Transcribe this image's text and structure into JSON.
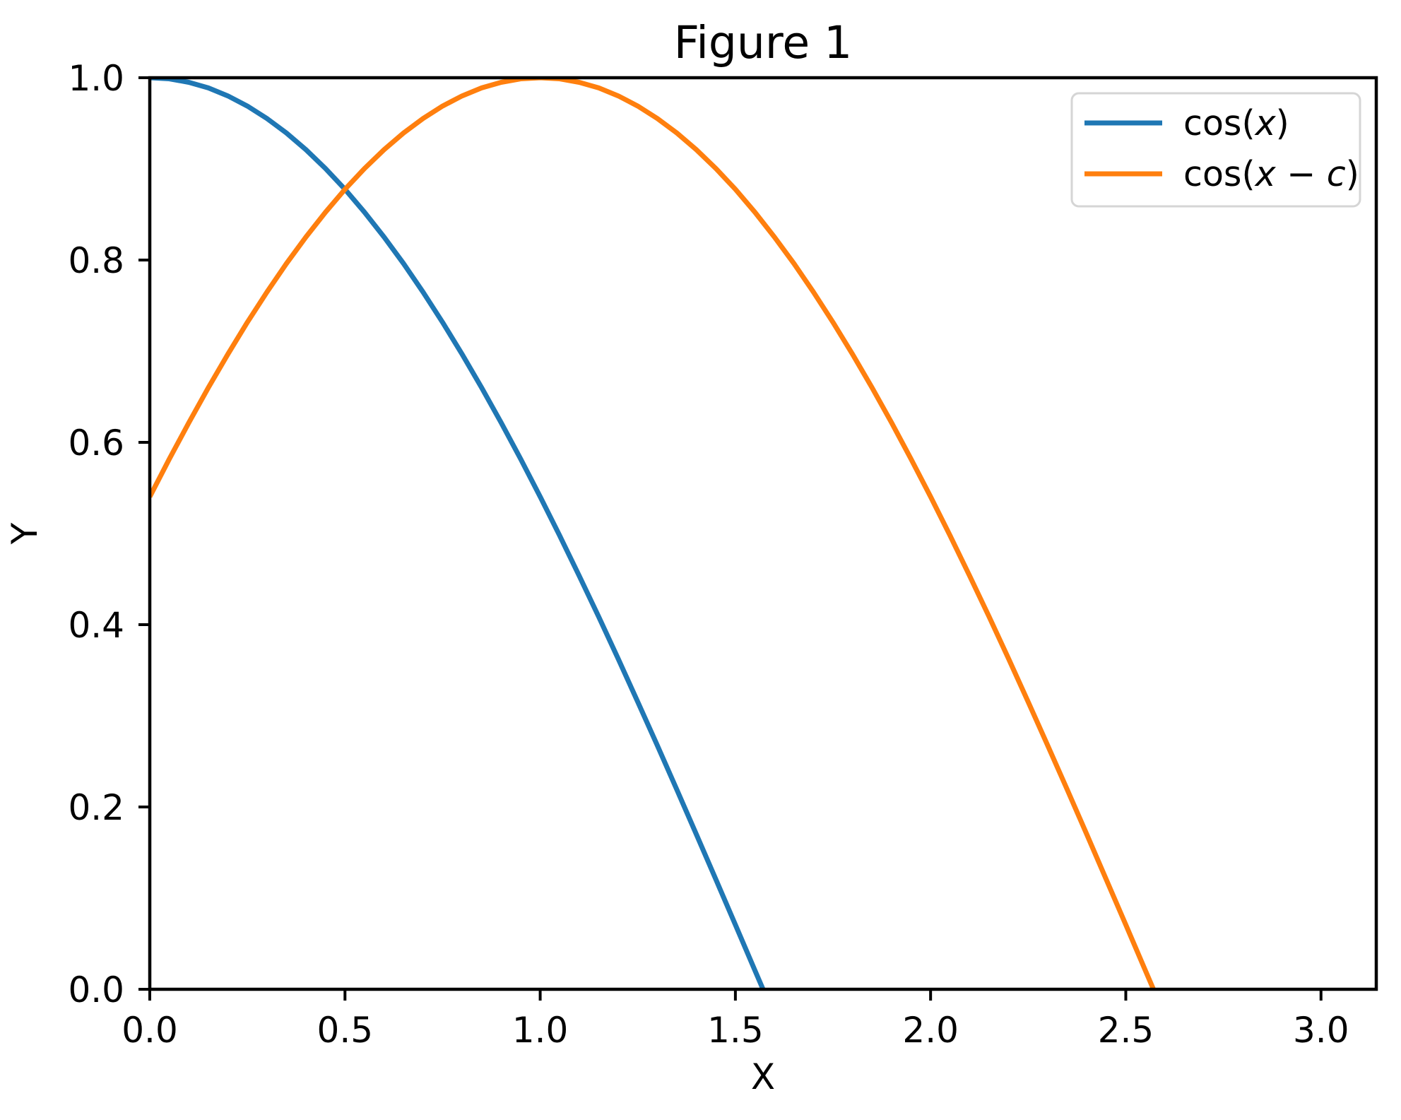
{
  "figure": {
    "background": "#ffffff",
    "axes_edge_color": "#000000",
    "text_color": "#000000",
    "legend_border_color": "#d5d5d5",
    "legend_background": "#ffffff"
  },
  "chart_data": {
    "type": "line",
    "title": "Figure 1",
    "xlabel": "X",
    "ylabel": "Y",
    "xlim": [
      0,
      3.14159
    ],
    "ylim": [
      0,
      1
    ],
    "grid": false,
    "x_ticks": [
      0.0,
      0.5,
      1.0,
      1.5,
      2.0,
      2.5,
      3.0
    ],
    "x_tick_labels": [
      "0.0",
      "0.5",
      "1.0",
      "1.5",
      "2.0",
      "2.5",
      "3.0"
    ],
    "y_ticks": [
      0.0,
      0.2,
      0.4,
      0.6,
      0.8,
      1.0
    ],
    "y_tick_labels": [
      "0.0",
      "0.2",
      "0.4",
      "0.6",
      "0.8",
      "1.0"
    ],
    "legend": {
      "position": "upper right",
      "entries": [
        "cos(x)",
        "cos(x − c)"
      ]
    },
    "series": [
      {
        "id": "cos-x",
        "name": "cos(x)",
        "color": "#1f77b4",
        "label_segments": [
          {
            "t": "cos(",
            "italic": false
          },
          {
            "t": "x",
            "italic": true
          },
          {
            "t": ")",
            "italic": false
          }
        ],
        "points": [
          [
            0.0,
            1.0
          ],
          [
            0.05,
            0.9988
          ],
          [
            0.1,
            0.995
          ],
          [
            0.15,
            0.9888
          ],
          [
            0.2,
            0.9801
          ],
          [
            0.25,
            0.9689
          ],
          [
            0.3,
            0.9553
          ],
          [
            0.35,
            0.9394
          ],
          [
            0.4,
            0.9211
          ],
          [
            0.45,
            0.9004
          ],
          [
            0.5,
            0.8776
          ],
          [
            0.55,
            0.8525
          ],
          [
            0.6,
            0.8253
          ],
          [
            0.65,
            0.7961
          ],
          [
            0.7,
            0.7648
          ],
          [
            0.75,
            0.7317
          ],
          [
            0.8,
            0.6967
          ],
          [
            0.85,
            0.66
          ],
          [
            0.9,
            0.6216
          ],
          [
            0.95,
            0.5817
          ],
          [
            1.0,
            0.5403
          ],
          [
            1.05,
            0.4976
          ],
          [
            1.1,
            0.4536
          ],
          [
            1.15,
            0.4085
          ],
          [
            1.2,
            0.3624
          ],
          [
            1.25,
            0.3153
          ],
          [
            1.3,
            0.2675
          ],
          [
            1.35,
            0.219
          ],
          [
            1.4,
            0.17
          ],
          [
            1.45,
            0.1205
          ],
          [
            1.5,
            0.0707
          ],
          [
            1.55,
            0.0208
          ],
          [
            1.5708,
            0.0
          ]
        ]
      },
      {
        "id": "cos-x-minus-c",
        "name": "cos(x − c)",
        "color": "#ff7f0e",
        "label_segments": [
          {
            "t": "cos(",
            "italic": false
          },
          {
            "t": "x",
            "italic": true
          },
          {
            "t": " − ",
            "italic": false
          },
          {
            "t": "c",
            "italic": true
          },
          {
            "t": ")",
            "italic": false
          }
        ],
        "points": [
          [
            0.0,
            0.5403
          ],
          [
            0.05,
            0.5817
          ],
          [
            0.1,
            0.6216
          ],
          [
            0.15,
            0.66
          ],
          [
            0.2,
            0.6967
          ],
          [
            0.25,
            0.7317
          ],
          [
            0.3,
            0.7648
          ],
          [
            0.35,
            0.7961
          ],
          [
            0.4,
            0.8253
          ],
          [
            0.45,
            0.8525
          ],
          [
            0.5,
            0.8776
          ],
          [
            0.55,
            0.9004
          ],
          [
            0.6,
            0.9211
          ],
          [
            0.65,
            0.9394
          ],
          [
            0.7,
            0.9553
          ],
          [
            0.75,
            0.9689
          ],
          [
            0.8,
            0.9801
          ],
          [
            0.85,
            0.9888
          ],
          [
            0.9,
            0.995
          ],
          [
            0.95,
            0.9988
          ],
          [
            1.0,
            1.0
          ],
          [
            1.05,
            0.9988
          ],
          [
            1.1,
            0.995
          ],
          [
            1.15,
            0.9888
          ],
          [
            1.2,
            0.9801
          ],
          [
            1.25,
            0.9689
          ],
          [
            1.3,
            0.9553
          ],
          [
            1.35,
            0.9394
          ],
          [
            1.4,
            0.9211
          ],
          [
            1.45,
            0.9004
          ],
          [
            1.5,
            0.8776
          ],
          [
            1.55,
            0.8525
          ],
          [
            1.6,
            0.8253
          ],
          [
            1.65,
            0.7961
          ],
          [
            1.7,
            0.7648
          ],
          [
            1.75,
            0.7317
          ],
          [
            1.8,
            0.6967
          ],
          [
            1.85,
            0.66
          ],
          [
            1.9,
            0.6216
          ],
          [
            1.95,
            0.5817
          ],
          [
            2.0,
            0.5403
          ],
          [
            2.05,
            0.4976
          ],
          [
            2.1,
            0.4536
          ],
          [
            2.15,
            0.4085
          ],
          [
            2.2,
            0.3624
          ],
          [
            2.25,
            0.3153
          ],
          [
            2.3,
            0.2675
          ],
          [
            2.35,
            0.219
          ],
          [
            2.4,
            0.17
          ],
          [
            2.45,
            0.1205
          ],
          [
            2.5,
            0.0707
          ],
          [
            2.55,
            0.0208
          ],
          [
            2.5708,
            0.0
          ]
        ]
      }
    ]
  }
}
